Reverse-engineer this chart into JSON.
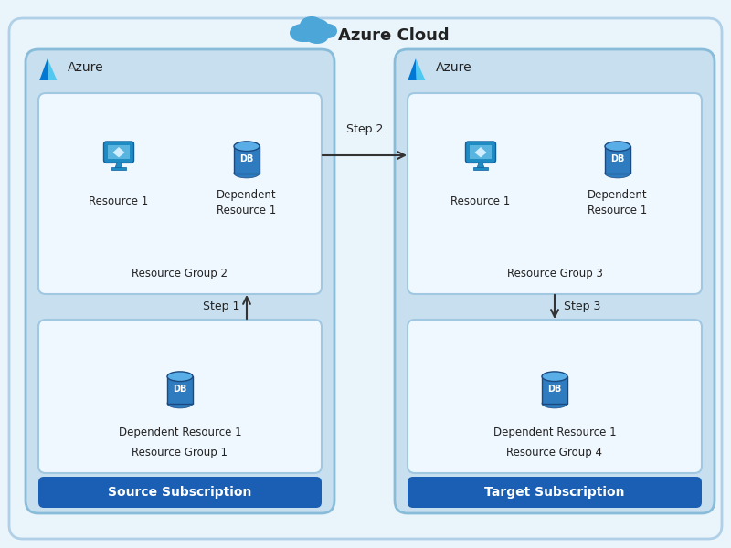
{
  "title": "Azure Cloud",
  "bg_outer": "#eaf4fb",
  "bg_outer_border": "#b0d0e8",
  "sub_left_bg": "#c8dff0",
  "sub_right_bg": "#c8dff0",
  "sub_border": "#88bcd8",
  "group_bg": "#f0f8ff",
  "group_border": "#a0c8e0",
  "button_color": "#1a5fb4",
  "button_text": "#ffffff",
  "text_color": "#222222",
  "arrow_color": "#333333",
  "left_label": "Source Subscription",
  "right_label": "Target Subscription",
  "azure_label": "Azure",
  "rg2_label": "Resource Group 2",
  "rg1_label": "Resource Group 1",
  "rg3_label": "Resource Group 3",
  "rg4_label": "Resource Group 4",
  "res1_label": "Resource 1",
  "dep_res_label": "Dependent\nResource 1",
  "dep_res_label_single": "Dependent Resource 1",
  "step1_label": "Step 1",
  "step2_label": "Step 2",
  "step3_label": "Step 3",
  "computer_body_color": "#1e8bc3",
  "computer_screen_color": "#5ab4e0",
  "computer_gem_color": "#d0eeff",
  "db_body_color": "#2e7bbf",
  "db_top_color": "#5aaee8",
  "cloud_color": "#4da6d8"
}
